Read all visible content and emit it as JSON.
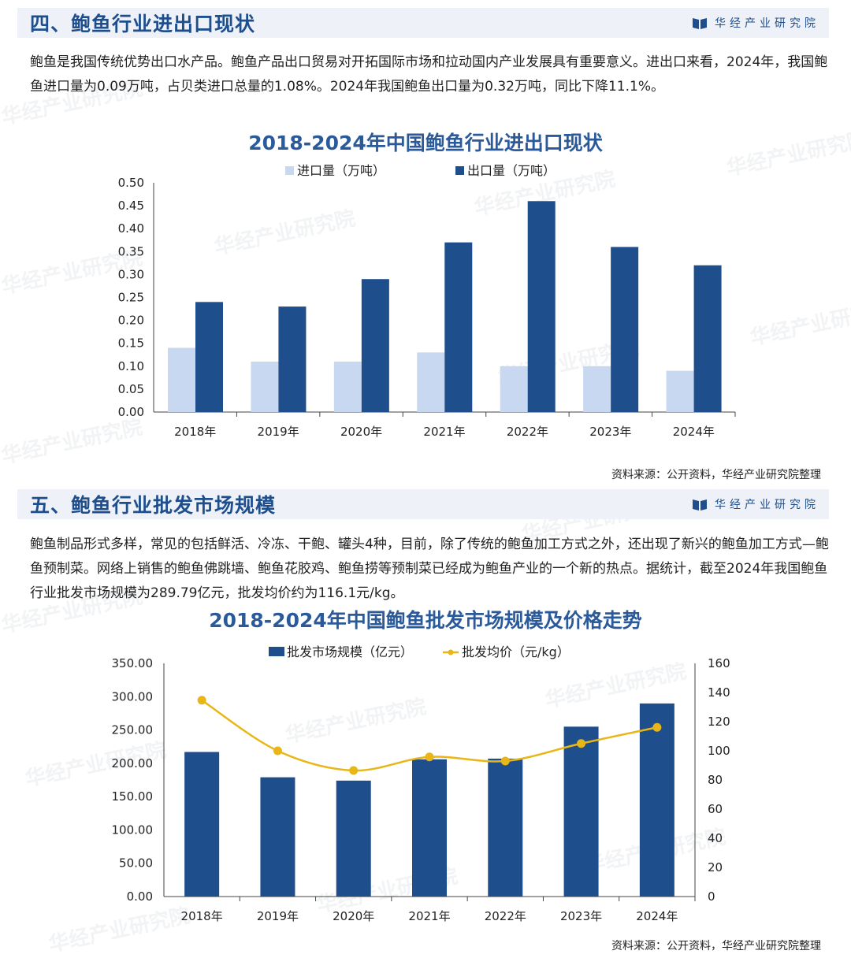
{
  "brand": {
    "name": "华经产业研究院"
  },
  "section1": {
    "title": "四、鲍鱼行业进出口现状",
    "paragraph": "鲍鱼是我国传统优势出口水产品。鲍鱼产品出口贸易对开拓国际市场和拉动国内产业发展具有重要意义。进出口来看，2024年，我国鲍鱼进口量为0.09万吨，占贝类进口总量的1.08%。2024年我国鲍鱼出口量为0.32万吨，同比下降11.1%。",
    "source": "资料来源：公开资料，华经产业研究院整理"
  },
  "section2": {
    "title": "五、鲍鱼行业批发市场规模",
    "paragraph": "鲍鱼制品形式多样，常见的包括鲜活、冷冻、干鲍、罐头4种，目前，除了传统的鲍鱼加工方式之外，还出现了新兴的鲍鱼加工方式—鲍鱼预制菜。网络上销售的鲍鱼佛跳墙、鲍鱼花胶鸡、鲍鱼捞等预制菜已经成为鲍鱼产业的一个新的热点。据统计，截至2024年我国鲍鱼行业批发市场规模为289.79亿元，批发均价约为116.1元/kg。",
    "source": "资料来源：公开资料，华经产业研究院整理"
  },
  "colors": {
    "light_blue": "#c7d8f0",
    "dark_blue": "#1f4e8c",
    "gold": "#e8b616",
    "title_blue": "#2b5a9b"
  },
  "chart_data": [
    {
      "type": "bar",
      "title": "2018-2024年中国鲍鱼行业进出口现状",
      "categories": [
        "2018年",
        "2019年",
        "2020年",
        "2021年",
        "2022年",
        "2023年",
        "2024年"
      ],
      "series": [
        {
          "name": "进口量（万吨）",
          "values": [
            0.14,
            0.11,
            0.11,
            0.13,
            0.1,
            0.1,
            0.09
          ]
        },
        {
          "name": "出口量（万吨）",
          "values": [
            0.24,
            0.23,
            0.29,
            0.37,
            0.46,
            0.36,
            0.32
          ]
        }
      ],
      "ylim": [
        0,
        0.5
      ],
      "yticks": [
        "0.00",
        "0.05",
        "0.10",
        "0.15",
        "0.20",
        "0.25",
        "0.30",
        "0.35",
        "0.40",
        "0.45",
        "0.50"
      ],
      "legend": "top-center"
    },
    {
      "type": "bar",
      "title": "2018-2024年中国鲍鱼批发市场规模及价格走势",
      "categories": [
        "2018年",
        "2019年",
        "2020年",
        "2021年",
        "2022年",
        "2023年",
        "2024年"
      ],
      "series": [
        {
          "name": "批发市场规模（亿元）",
          "values": [
            217,
            179,
            174,
            206,
            207,
            255,
            289.79
          ],
          "axis": "left",
          "kind": "bar"
        },
        {
          "name": "批发均价（元/kg）",
          "values": [
            134.7,
            100,
            86.5,
            95.8,
            93,
            105,
            116.1
          ],
          "axis": "right",
          "kind": "line"
        }
      ],
      "ylim_left": [
        0,
        350
      ],
      "ylim_right": [
        0,
        160
      ],
      "yticks_left": [
        "0.00",
        "50.00",
        "100.00",
        "150.00",
        "200.00",
        "250.00",
        "300.00",
        "350.00"
      ],
      "yticks_right": [
        "0",
        "20",
        "40",
        "60",
        "80",
        "100",
        "120",
        "140",
        "160"
      ],
      "legend": "top-center"
    }
  ]
}
